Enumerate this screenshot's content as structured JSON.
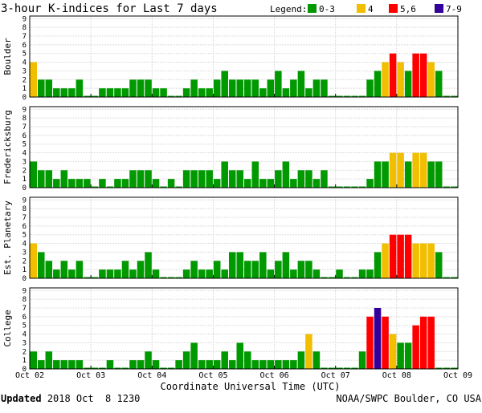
{
  "chart_data": {
    "type": "bar",
    "title": "3-hour K-indices for Last 7 days",
    "legend": {
      "title": "Legend:",
      "items": [
        {
          "label": "0-3",
          "color": "#009900"
        },
        {
          "label": "4",
          "color": "#f2be00"
        },
        {
          "label": "5,6",
          "color": "#ff0000"
        },
        {
          "label": "7-9",
          "color": "#330099"
        }
      ]
    },
    "xlabel": "Coordinate Universal Time (UTC)",
    "x_ticks": [
      "Oct 02",
      "Oct 03",
      "Oct 04",
      "Oct 05",
      "Oct 06",
      "Oct 07",
      "Oct 08",
      "Oct 09"
    ],
    "ylim": [
      0,
      9
    ],
    "y_ticks": [
      0,
      1,
      2,
      3,
      4,
      5,
      6,
      7,
      8,
      9
    ],
    "bars_per_panel": 56,
    "gridlines": true,
    "panels": [
      {
        "name": "Boulder",
        "values": [
          4,
          2,
          2,
          1,
          1,
          1,
          2,
          0,
          0,
          1,
          1,
          1,
          1,
          2,
          2,
          2,
          1,
          1,
          0,
          0,
          1,
          2,
          1,
          1,
          2,
          3,
          2,
          2,
          2,
          2,
          1,
          2,
          3,
          1,
          2,
          3,
          1,
          2,
          2,
          0,
          0,
          0,
          0,
          0,
          2,
          3,
          4,
          5,
          4,
          3,
          5,
          5,
          4,
          3,
          0,
          0
        ]
      },
      {
        "name": "Fredericksburg",
        "values": [
          3,
          2,
          2,
          1,
          2,
          1,
          1,
          1,
          0,
          1,
          0,
          1,
          1,
          2,
          2,
          2,
          1,
          0,
          1,
          0,
          2,
          2,
          2,
          2,
          1,
          3,
          2,
          2,
          1,
          3,
          1,
          1,
          2,
          3,
          1,
          2,
          2,
          1,
          2,
          0,
          0,
          0,
          0,
          0,
          1,
          3,
          3,
          4,
          4,
          3,
          4,
          4,
          3,
          3,
          0,
          0
        ]
      },
      {
        "name": "Est. Planetary",
        "values": [
          4,
          3,
          2,
          1,
          2,
          1,
          2,
          0,
          0,
          1,
          1,
          1,
          2,
          1,
          2,
          3,
          1,
          0,
          0,
          0,
          1,
          2,
          1,
          1,
          2,
          1,
          3,
          3,
          2,
          2,
          3,
          1,
          2,
          3,
          1,
          2,
          2,
          1,
          0,
          0,
          1,
          0,
          0,
          1,
          1,
          3,
          4,
          5,
          5,
          5,
          4,
          4,
          4,
          3,
          0,
          0
        ]
      },
      {
        "name": "College",
        "values": [
          2,
          1,
          2,
          1,
          1,
          1,
          1,
          0,
          0,
          0,
          1,
          0,
          0,
          1,
          1,
          2,
          1,
          0,
          0,
          1,
          2,
          3,
          1,
          1,
          1,
          2,
          1,
          3,
          2,
          1,
          1,
          1,
          1,
          1,
          1,
          2,
          4,
          2,
          0,
          0,
          0,
          0,
          0,
          2,
          6,
          7,
          6,
          4,
          3,
          3,
          5,
          6,
          6,
          0,
          0,
          0
        ]
      }
    ]
  },
  "footer": {
    "updated_label": "Updated",
    "updated_value": "2018 Oct  8 1230",
    "credit": "NOAA/SWPC Boulder, CO USA"
  }
}
